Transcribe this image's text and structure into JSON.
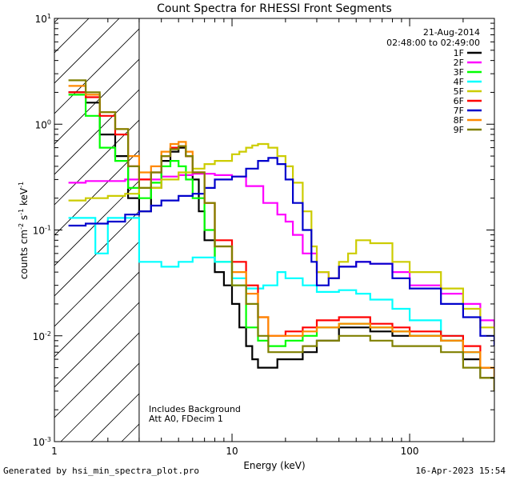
{
  "chart_data": {
    "type": "line",
    "title": "Count Spectra for RHESSI Front Segments",
    "xlabel": "Energy (keV)",
    "ylabel_parts": {
      "base": "counts cm",
      "sup1": "-2",
      "mid1": " s",
      "sup2": "-1",
      "mid2": " keV",
      "sup3": "-1"
    },
    "x_scale": "log",
    "y_scale": "log",
    "xlim": [
      1,
      300
    ],
    "ylim": [
      0.001,
      10
    ],
    "x_ticks": [
      {
        "v": 1,
        "label": "1"
      },
      {
        "v": 10,
        "label": "10"
      },
      {
        "v": 100,
        "label": "100"
      }
    ],
    "y_ticks": [
      {
        "v": 0.001,
        "base": "10",
        "exp": "-3"
      },
      {
        "v": 0.01,
        "base": "10",
        "exp": "-2"
      },
      {
        "v": 0.1,
        "base": "10",
        "exp": "-1"
      },
      {
        "v": 1,
        "base": "10",
        "exp": "0"
      },
      {
        "v": 10,
        "base": "10",
        "exp": "1"
      }
    ],
    "excluded_region_kev": [
      1,
      3
    ],
    "annotations": {
      "date": "21-Aug-2014",
      "time_range": "02:48:00 to 02:49:00"
    },
    "notes": [
      "Includes Background",
      "Att A0, FDecim 1"
    ],
    "series": [
      {
        "name": "1F",
        "color": "#000000",
        "x": [
          1.2,
          1.5,
          1.8,
          2.2,
          2.6,
          3.0,
          3.5,
          4.0,
          4.5,
          5.0,
          5.5,
          6.0,
          6.5,
          7.0,
          8.0,
          9.0,
          10.0,
          11,
          12,
          13,
          14,
          16,
          18,
          20,
          25,
          30,
          40,
          60,
          80,
          100,
          150,
          200,
          250,
          300
        ],
        "y": [
          2.0,
          1.6,
          0.8,
          0.5,
          0.2,
          0.15,
          0.25,
          0.45,
          0.55,
          0.6,
          0.5,
          0.3,
          0.15,
          0.08,
          0.04,
          0.03,
          0.02,
          0.012,
          0.008,
          0.006,
          0.005,
          0.005,
          0.006,
          0.006,
          0.007,
          0.009,
          0.012,
          0.011,
          0.01,
          0.01,
          0.009,
          0.006,
          0.004,
          0.003
        ]
      },
      {
        "name": "2F",
        "color": "#ff00ff",
        "x": [
          1.2,
          1.5,
          2.0,
          2.5,
          3.0,
          4.0,
          5.0,
          6.0,
          8.0,
          10,
          12,
          15,
          18,
          20,
          22,
          25,
          30,
          35,
          40,
          50,
          60,
          80,
          100,
          150,
          200,
          250,
          300
        ],
        "y": [
          0.28,
          0.29,
          0.29,
          0.3,
          0.3,
          0.32,
          0.33,
          0.34,
          0.33,
          0.32,
          0.26,
          0.18,
          0.14,
          0.12,
          0.09,
          0.06,
          0.04,
          0.035,
          0.045,
          0.05,
          0.048,
          0.04,
          0.03,
          0.025,
          0.02,
          0.014,
          0.011
        ]
      },
      {
        "name": "3F",
        "color": "#00ff00",
        "x": [
          1.2,
          1.5,
          1.8,
          2.2,
          2.6,
          3.0,
          3.5,
          4.0,
          4.5,
          5.0,
          5.5,
          6.0,
          7.0,
          8.0,
          10,
          12,
          14,
          16,
          20,
          25,
          30,
          40,
          60,
          80,
          100,
          150,
          200,
          250,
          300
        ],
        "y": [
          1.9,
          1.2,
          0.6,
          0.45,
          0.25,
          0.2,
          0.28,
          0.4,
          0.45,
          0.4,
          0.3,
          0.2,
          0.1,
          0.05,
          0.03,
          0.012,
          0.009,
          0.008,
          0.009,
          0.01,
          0.012,
          0.013,
          0.012,
          0.011,
          0.01,
          0.009,
          0.007,
          0.005,
          0.003
        ]
      },
      {
        "name": "4F",
        "color": "#00ffff",
        "x": [
          1.2,
          1.5,
          1.7,
          2.0,
          2.5,
          3.0,
          4.0,
          5.0,
          6.0,
          8.0,
          10,
          12,
          15,
          18,
          20,
          25,
          30,
          40,
          50,
          60,
          80,
          100,
          150,
          200,
          250,
          300
        ],
        "y": [
          0.13,
          0.13,
          0.06,
          0.13,
          0.13,
          0.05,
          0.045,
          0.05,
          0.055,
          0.05,
          0.035,
          0.028,
          0.03,
          0.04,
          0.035,
          0.03,
          0.026,
          0.027,
          0.025,
          0.022,
          0.018,
          0.014,
          0.01,
          0.007,
          0.005,
          0.004
        ]
      },
      {
        "name": "5F",
        "color": "#cccc00",
        "x": [
          1.2,
          1.5,
          2.0,
          2.5,
          3.0,
          4.0,
          5.0,
          6.0,
          7.0,
          8.0,
          10,
          11,
          12,
          13,
          14,
          16,
          18,
          20,
          22,
          25,
          28,
          30,
          35,
          40,
          45,
          50,
          60,
          80,
          100,
          150,
          200,
          250,
          300
        ],
        "y": [
          0.19,
          0.2,
          0.21,
          0.22,
          0.25,
          0.3,
          0.35,
          0.38,
          0.42,
          0.45,
          0.52,
          0.55,
          0.6,
          0.63,
          0.65,
          0.6,
          0.5,
          0.4,
          0.28,
          0.15,
          0.07,
          0.04,
          0.035,
          0.05,
          0.06,
          0.08,
          0.075,
          0.05,
          0.04,
          0.028,
          0.018,
          0.012,
          0.009
        ]
      },
      {
        "name": "6F",
        "color": "#ff0000",
        "x": [
          1.2,
          1.5,
          1.8,
          2.2,
          2.6,
          3.0,
          3.5,
          4.0,
          4.5,
          5.0,
          5.5,
          6.0,
          7.0,
          8.0,
          10,
          12,
          14,
          16,
          20,
          25,
          30,
          40,
          60,
          80,
          100,
          150,
          200,
          250,
          300
        ],
        "y": [
          2.0,
          1.8,
          1.2,
          0.8,
          0.4,
          0.3,
          0.35,
          0.5,
          0.6,
          0.62,
          0.5,
          0.35,
          0.18,
          0.08,
          0.05,
          0.03,
          0.015,
          0.01,
          0.011,
          0.012,
          0.014,
          0.015,
          0.013,
          0.012,
          0.011,
          0.01,
          0.008,
          0.005,
          0.003
        ]
      },
      {
        "name": "7F",
        "color": "#0000cc",
        "x": [
          1.2,
          1.5,
          2.0,
          2.5,
          3.0,
          3.5,
          4.0,
          5.0,
          6.0,
          7.0,
          8.0,
          10,
          12,
          14,
          16,
          18,
          20,
          22,
          25,
          28,
          30,
          35,
          40,
          50,
          60,
          80,
          100,
          150,
          200,
          250,
          300
        ],
        "y": [
          0.11,
          0.115,
          0.12,
          0.14,
          0.15,
          0.17,
          0.19,
          0.21,
          0.22,
          0.25,
          0.3,
          0.32,
          0.38,
          0.45,
          0.48,
          0.42,
          0.3,
          0.18,
          0.1,
          0.05,
          0.03,
          0.035,
          0.045,
          0.05,
          0.048,
          0.035,
          0.028,
          0.02,
          0.015,
          0.01,
          0.008
        ]
      },
      {
        "name": "8F",
        "color": "#ff8800",
        "x": [
          1.2,
          1.5,
          1.8,
          2.2,
          2.6,
          3.0,
          3.5,
          4.0,
          4.5,
          5.0,
          5.5,
          6.0,
          7.0,
          8.0,
          10,
          12,
          14,
          16,
          20,
          25,
          30,
          40,
          60,
          80,
          100,
          150,
          200,
          250,
          300
        ],
        "y": [
          2.3,
          1.9,
          1.3,
          0.9,
          0.5,
          0.35,
          0.4,
          0.55,
          0.65,
          0.68,
          0.55,
          0.35,
          0.18,
          0.07,
          0.04,
          0.025,
          0.015,
          0.01,
          0.01,
          0.011,
          0.012,
          0.013,
          0.012,
          0.011,
          0.01,
          0.009,
          0.007,
          0.005,
          0.003
        ]
      },
      {
        "name": "9F",
        "color": "#808000",
        "x": [
          1.2,
          1.5,
          1.8,
          2.2,
          2.6,
          3.0,
          3.5,
          4.0,
          4.5,
          5.0,
          5.5,
          6.0,
          7.0,
          8.0,
          10,
          12,
          14,
          16,
          20,
          25,
          30,
          40,
          60,
          80,
          100,
          150,
          200,
          250,
          300
        ],
        "y": [
          2.6,
          2.0,
          1.3,
          0.9,
          0.4,
          0.25,
          0.35,
          0.5,
          0.58,
          0.62,
          0.5,
          0.35,
          0.18,
          0.07,
          0.03,
          0.02,
          0.01,
          0.007,
          0.007,
          0.008,
          0.009,
          0.01,
          0.009,
          0.008,
          0.008,
          0.007,
          0.005,
          0.004,
          0.003
        ]
      }
    ]
  },
  "footer": {
    "generated_by": "Generated by hsi_min_spectra_plot.pro",
    "timestamp": "16-Apr-2023 15:54"
  }
}
